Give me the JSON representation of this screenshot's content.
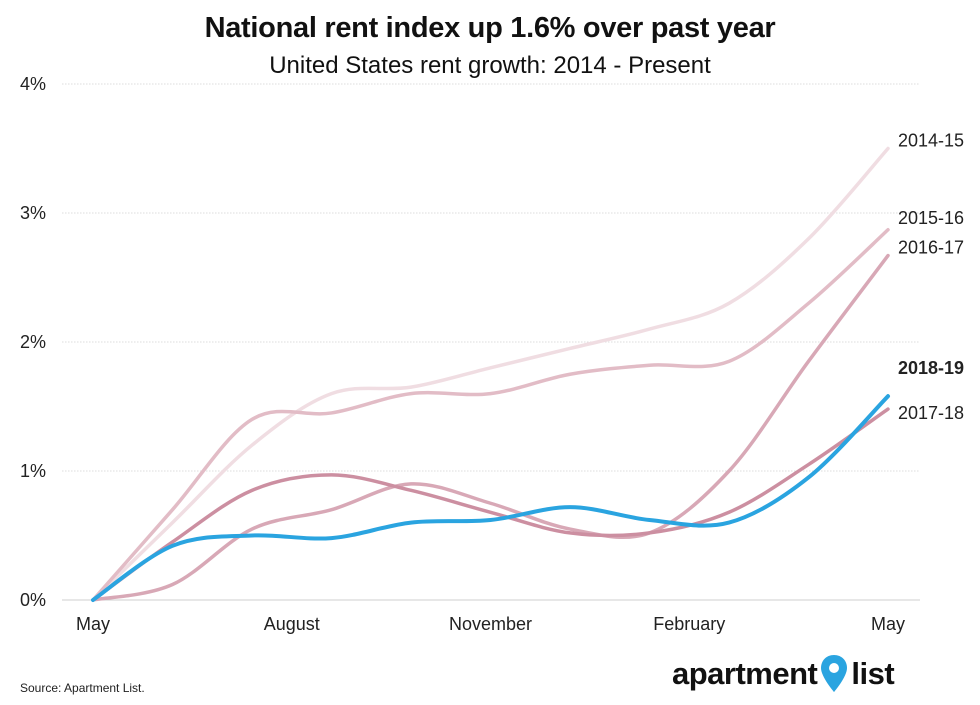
{
  "chart_data": {
    "type": "line",
    "title": "National rent index up 1.6% over past year",
    "subtitle": "United States rent growth: 2014 - Present",
    "x_tick_labels": [
      "May",
      "August",
      "November",
      "February",
      "May"
    ],
    "y_tick_labels": [
      "0%",
      "1%",
      "2%",
      "3%",
      "4%"
    ],
    "ylim": [
      0,
      4
    ],
    "grid": true,
    "legend": "direct labels at line ends",
    "series": [
      {
        "name": "2014-15",
        "color": "#f0dde2",
        "width": 3.5,
        "values": [
          0,
          0.6,
          1.2,
          1.6,
          1.65,
          1.8,
          1.95,
          2.1,
          2.3,
          2.8,
          3.5
        ]
      },
      {
        "name": "2015-16",
        "color": "#e2bcc6",
        "width": 3.5,
        "values": [
          0,
          0.7,
          1.4,
          1.45,
          1.6,
          1.6,
          1.75,
          1.82,
          1.85,
          2.3,
          2.87
        ]
      },
      {
        "name": "2016-17",
        "color": "#d8a8b6",
        "width": 3.5,
        "values": [
          0,
          0.12,
          0.55,
          0.7,
          0.9,
          0.75,
          0.55,
          0.52,
          1.0,
          1.85,
          2.67
        ]
      },
      {
        "name": "2017-18",
        "color": "#cc8fa1",
        "width": 3.5,
        "values": [
          0,
          0.45,
          0.85,
          0.97,
          0.85,
          0.68,
          0.52,
          0.52,
          0.68,
          1.05,
          1.48
        ]
      },
      {
        "name": "2018-19",
        "color": "#2aa4e0",
        "width": 4,
        "bold": true,
        "values": [
          0,
          0.42,
          0.5,
          0.48,
          0.6,
          0.62,
          0.72,
          0.62,
          0.6,
          0.95,
          1.58
        ]
      }
    ]
  },
  "footer": {
    "source": "Source: Apartment List.",
    "brand_left": "apartment",
    "brand_right": "list",
    "brand_pin_color": "#2aa4e0"
  }
}
